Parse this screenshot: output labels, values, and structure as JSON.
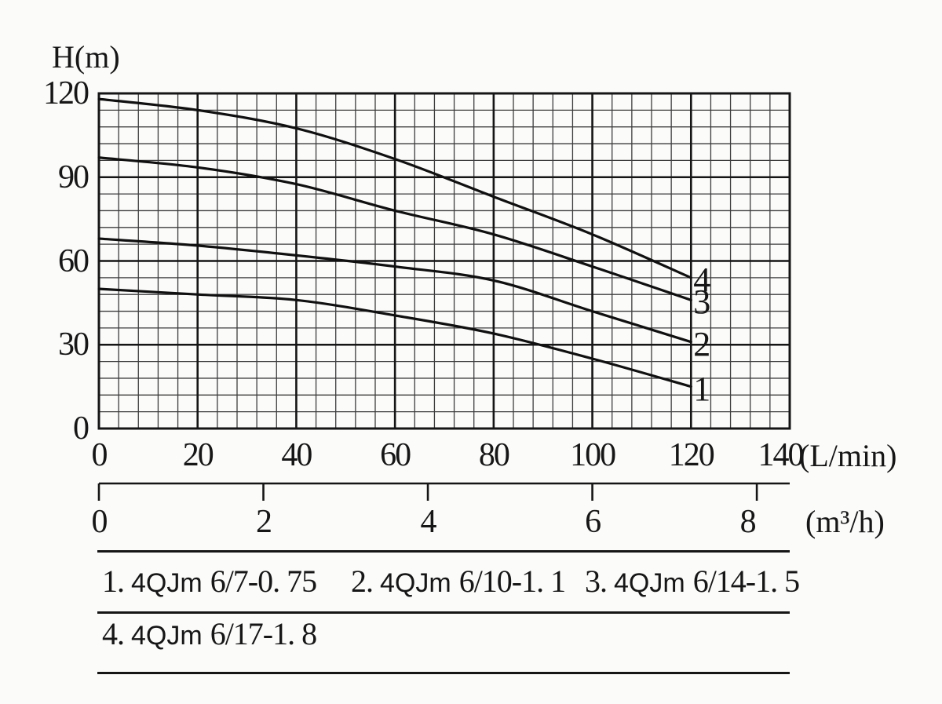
{
  "page": {
    "background": "#fbfbfa",
    "ink": "#161616",
    "line_color": "#151515"
  },
  "chart": {
    "y_axis_title": "H(m)",
    "x_unit_primary": "(L/min)",
    "x_unit_secondary": "(m³/h)"
  },
  "chart_data": {
    "type": "line",
    "title": "",
    "ylabel": "H(m)",
    "xlabel": "(L/min)",
    "xlabel_secondary": "(m³/h)",
    "grid": true,
    "legend_position": "below",
    "y_axis": {
      "unit": "m",
      "range": [
        0,
        120
      ],
      "ticks": [
        120,
        90,
        60,
        30,
        0
      ],
      "minor_step": 6,
      "major_step": 30
    },
    "x_axis": {
      "unit": "L/min",
      "range": [
        0,
        140
      ],
      "ticks": [
        0,
        20,
        40,
        60,
        80,
        100,
        120,
        140
      ],
      "minor_step": 4,
      "major_step": 20
    },
    "x_axis_secondary": {
      "unit": "m³/h",
      "ticks": [
        0,
        2,
        4,
        6,
        8
      ],
      "lmin_per_unit": 16.6667
    },
    "series": [
      {
        "curve_label": "1",
        "model": "4QJm 6/7-0.75",
        "points": [
          [
            0,
            50
          ],
          [
            20,
            48
          ],
          [
            40,
            46
          ],
          [
            60,
            40.5
          ],
          [
            80,
            34
          ],
          [
            100,
            25
          ],
          [
            120,
            15
          ]
        ]
      },
      {
        "curve_label": "2",
        "model": "4QJm 6/10-1.1",
        "points": [
          [
            0,
            68
          ],
          [
            20,
            65.5
          ],
          [
            40,
            62
          ],
          [
            60,
            58
          ],
          [
            80,
            53
          ],
          [
            100,
            42
          ],
          [
            120,
            31
          ]
        ]
      },
      {
        "curve_label": "3",
        "model": "4QJm 6/14-1.5",
        "points": [
          [
            0,
            97
          ],
          [
            20,
            93.5
          ],
          [
            40,
            87.5
          ],
          [
            60,
            78
          ],
          [
            80,
            69.5
          ],
          [
            100,
            58
          ],
          [
            120,
            46
          ]
        ]
      },
      {
        "curve_label": "4",
        "model": "4QJm 6/17-1.8",
        "points": [
          [
            0,
            118
          ],
          [
            20,
            114
          ],
          [
            40,
            107.5
          ],
          [
            60,
            96.5
          ],
          [
            80,
            83
          ],
          [
            100,
            69.5
          ],
          [
            120,
            54
          ]
        ]
      }
    ]
  },
  "legend": {
    "rows": [
      {
        "items": [
          {
            "index": "1.",
            "family": "4QJm",
            "spec": "6/7-0. 75"
          },
          {
            "index": "2.",
            "family": "4QJm",
            "spec": "6/10-1. 1"
          },
          {
            "index": "3.",
            "family": "4QJm",
            "spec": "6/14-1. 5"
          }
        ]
      },
      {
        "items": [
          {
            "index": "4.",
            "family": "4QJm",
            "spec": "6/17-1. 8"
          }
        ]
      }
    ]
  }
}
